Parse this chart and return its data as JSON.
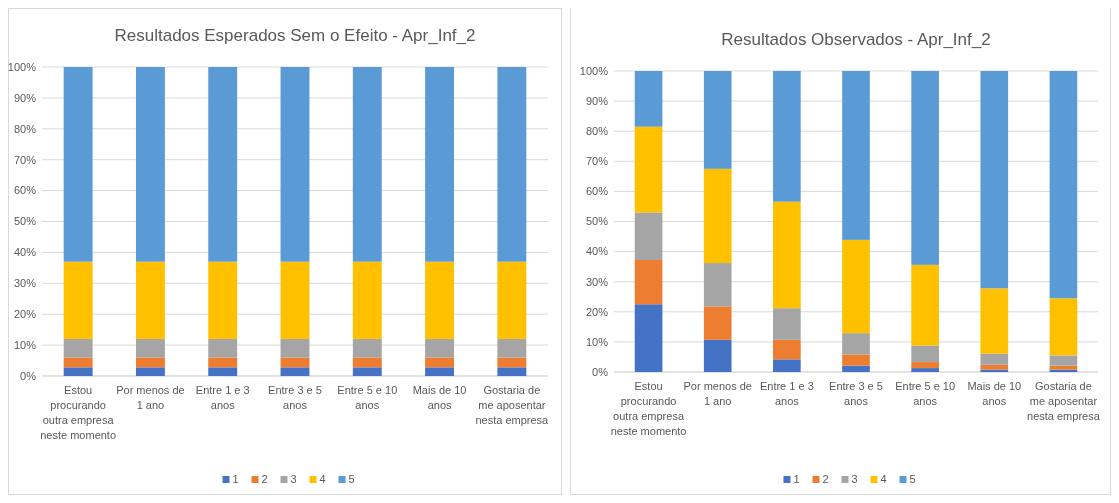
{
  "chart_data": [
    {
      "type": "bar",
      "title": "Resultados Esperados Sem o Efeito - Apr_Inf_2",
      "stacked": true,
      "categories": [
        "Estou procurando outra empresa neste momento",
        "Por menos de 1 ano",
        "Entre 1 e 3 anos",
        "Entre 3 e 5 anos",
        "Entre 5 e 10 anos",
        "Mais de 10 anos",
        "Gostaria de me aposentar nesta empresa"
      ],
      "ylim": [
        0,
        100
      ],
      "yticks": [
        {
          "value": 0,
          "label": "0%"
        },
        {
          "value": 10,
          "label": "10%"
        },
        {
          "value": 20,
          "label": "20%"
        },
        {
          "value": 30,
          "label": "30%"
        },
        {
          "value": 40,
          "label": "40%"
        },
        {
          "value": 50,
          "label": "50%"
        },
        {
          "value": 60,
          "label": "60%"
        },
        {
          "value": 70,
          "label": "70%"
        },
        {
          "value": 80,
          "label": "80%"
        },
        {
          "value": 90,
          "label": "90%"
        },
        {
          "value": 100,
          "label": "100%"
        }
      ],
      "grid": "y",
      "legend": "bottom",
      "series": [
        {
          "name": "1",
          "color": "#4472c4",
          "values": [
            2.8,
            2.8,
            2.8,
            2.8,
            2.8,
            2.8,
            2.8
          ]
        },
        {
          "name": "2",
          "color": "#ed7d31",
          "values": [
            3.2,
            3.2,
            3.2,
            3.2,
            3.2,
            3.2,
            3.2
          ]
        },
        {
          "name": "3",
          "color": "#a5a5a5",
          "values": [
            6,
            6,
            6,
            6,
            6,
            6,
            6
          ]
        },
        {
          "name": "4",
          "color": "#ffc000",
          "values": [
            25,
            25,
            25,
            25,
            25,
            25,
            25
          ]
        },
        {
          "name": "5",
          "color": "#5b9bd5",
          "values": [
            63,
            63,
            63,
            63,
            63,
            63,
            63
          ]
        }
      ]
    },
    {
      "type": "bar",
      "title": "Resultados Observados - Apr_Inf_2",
      "stacked": true,
      "categories": [
        "Estou procurando outra empresa neste momento",
        "Por menos de 1 ano",
        "Entre 1 e 3 anos",
        "Entre 3 e 5 anos",
        "Entre 5 e 10 anos",
        "Mais de 10 anos",
        "Gostaria de me aposentar nesta empresa"
      ],
      "ylim": [
        0,
        100
      ],
      "yticks": [
        {
          "value": 0,
          "label": "0%"
        },
        {
          "value": 10,
          "label": "10%"
        },
        {
          "value": 20,
          "label": "20%"
        },
        {
          "value": 30,
          "label": "30%"
        },
        {
          "value": 40,
          "label": "40%"
        },
        {
          "value": 50,
          "label": "50%"
        },
        {
          "value": 60,
          "label": "60%"
        },
        {
          "value": 70,
          "label": "70%"
        },
        {
          "value": 80,
          "label": "80%"
        },
        {
          "value": 90,
          "label": "90%"
        },
        {
          "value": 100,
          "label": "100%"
        }
      ],
      "grid": "y",
      "legend": "bottom",
      "series": [
        {
          "name": "1",
          "color": "#4472c4",
          "values": [
            22.5,
            10.7,
            4.2,
            2.1,
            1.3,
            0.8,
            0.8
          ]
        },
        {
          "name": "2",
          "color": "#ed7d31",
          "values": [
            14.7,
            11.1,
            6.5,
            3.7,
            2,
            1.6,
            1.3
          ]
        },
        {
          "name": "3",
          "color": "#a5a5a5",
          "values": [
            15.8,
            14.4,
            10.5,
            7.1,
            5.5,
            3.7,
            3.4
          ]
        },
        {
          "name": "4",
          "color": "#ffc000",
          "values": [
            28.5,
            31.3,
            35.4,
            31,
            26.8,
            21.7,
            19
          ]
        },
        {
          "name": "5",
          "color": "#5b9bd5",
          "values": [
            18.5,
            32.5,
            43.4,
            56.1,
            64.4,
            72.2,
            75.5
          ]
        }
      ]
    }
  ]
}
